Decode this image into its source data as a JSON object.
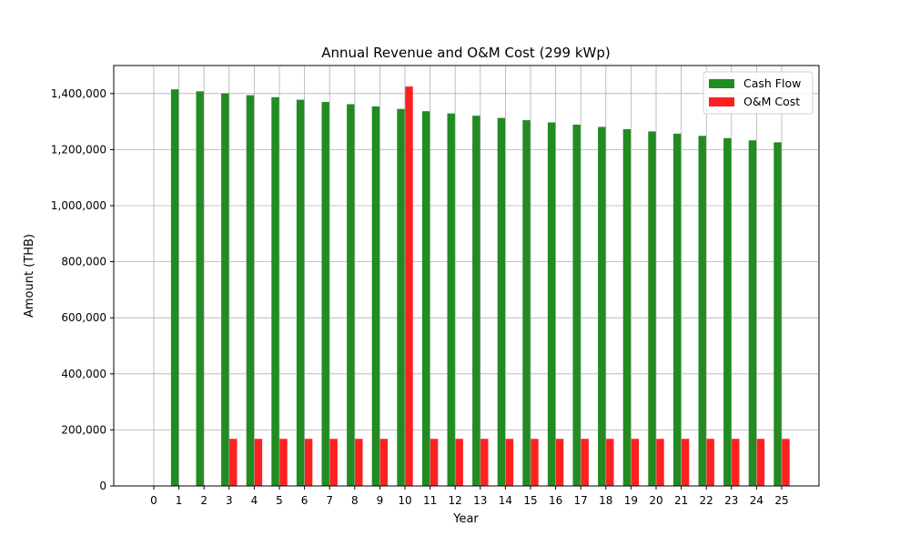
{
  "chart_data": {
    "type": "bar",
    "title": "Annual Revenue and O&M Cost (299 kWp)",
    "xlabel": "Year",
    "ylabel": "Amount (THB)",
    "categories": [
      0,
      1,
      2,
      3,
      4,
      5,
      6,
      7,
      8,
      9,
      10,
      11,
      12,
      13,
      14,
      15,
      16,
      17,
      18,
      19,
      20,
      21,
      22,
      23,
      24,
      25
    ],
    "ylim": [
      0,
      1500000
    ],
    "yticks": [
      0,
      200000,
      400000,
      600000,
      800000,
      1000000,
      1200000,
      1400000
    ],
    "grid": true,
    "legend_position": "top-right",
    "series": [
      {
        "name": "Cash Flow",
        "color": "#228b22",
        "values": [
          0,
          1415000,
          1408000,
          1401000,
          1394000,
          1387000,
          1378000,
          1370000,
          1362000,
          1354000,
          1345000,
          1337000,
          1329000,
          1321000,
          1313000,
          1305000,
          1297000,
          1289000,
          1281000,
          1273000,
          1265000,
          1257000,
          1249000,
          1241000,
          1233000,
          1226000
        ]
      },
      {
        "name": "O&M Cost",
        "color": "#ff2020",
        "values": [
          0,
          0,
          0,
          168000,
          168000,
          168000,
          168000,
          168000,
          168000,
          168000,
          1425000,
          168000,
          168000,
          168000,
          168000,
          168000,
          168000,
          168000,
          168000,
          168000,
          168000,
          168000,
          168000,
          168000,
          168000,
          168000
        ]
      }
    ]
  }
}
